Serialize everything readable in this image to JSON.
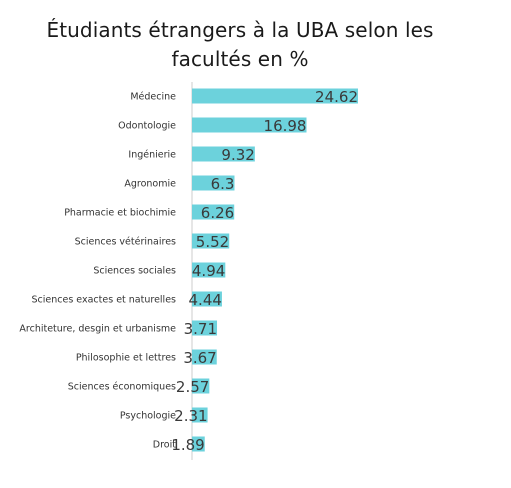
{
  "chart_data": {
    "type": "bar",
    "orientation": "horizontal",
    "title": "Étudiants étrangers à la UBA selon les facultés en %",
    "categories": [
      "Médecine",
      "Odontologie",
      "Ingénierie",
      "Agronomie",
      "Pharmacie et biochimie",
      "Sciences vétérinaires",
      "Sciences sociales",
      "Sciences exactes et naturelles",
      "Architeture, desgin et urbanisme",
      "Philosophie et lettres",
      "Sciences économiques",
      "Psychologie",
      "Droit"
    ],
    "values": [
      24.62,
      16.98,
      9.32,
      6.3,
      6.26,
      5.52,
      4.94,
      4.44,
      3.71,
      3.67,
      2.57,
      2.31,
      1.89
    ],
    "value_labels": [
      "24.62",
      "16.98",
      "9.32",
      "6.3",
      "6.26",
      "5.52",
      "4.94",
      "4.44",
      "3.71",
      "3.67",
      "2.57",
      "2.31",
      "1.89"
    ],
    "xlim": [
      0,
      24.62
    ],
    "grid": false,
    "legend": "none",
    "colors": {
      "bar": "#6cd2dc",
      "axis": "#cccccc",
      "text": "#333333"
    }
  }
}
